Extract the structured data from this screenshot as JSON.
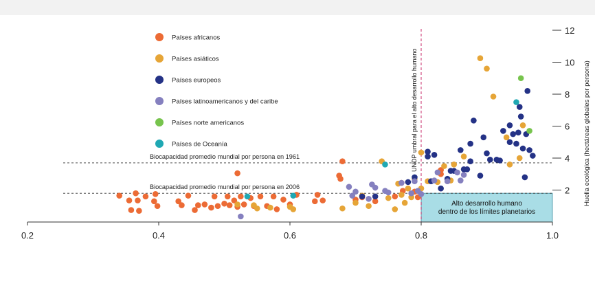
{
  "chart_data": {
    "type": "scatter",
    "title": "",
    "xlabel": "",
    "ylabel": "Huella ecológica (hectáreas globales por persona)",
    "xlim": [
      0.2,
      1.0
    ],
    "ylim": [
      0,
      12
    ],
    "x_ticks": [
      "0.2",
      "0.4",
      "0.6",
      "0.8",
      "1.0"
    ],
    "y_ticks": [
      "2",
      "4",
      "6",
      "8",
      "10",
      "12"
    ],
    "grid": false,
    "legend_position": "top-left",
    "colors": {
      "africa": "#ec6b35",
      "asia": "#e6a537",
      "europe": "#243286",
      "latam": "#8580bf",
      "namerica": "#77c44d",
      "oceania": "#1fa8b3",
      "box": "#a9dde6"
    },
    "reference_lines": [
      {
        "y": 3.7,
        "label": "Biocapacidad promedio mundial por persona en 1961"
      },
      {
        "y": 1.8,
        "label": "Biocapacidad promedio mundial por persona en 2006"
      }
    ],
    "threshold": {
      "x": 0.8,
      "label": "UNDP umbral para el alto desarrollo humano"
    },
    "region_box": {
      "x": [
        0.8,
        1.0
      ],
      "y": [
        0,
        1.8
      ],
      "label": [
        "Alto desarrollo humano",
        "dentro de los límites planetarios"
      ]
    },
    "series": [
      {
        "name": "Países africanos",
        "color_key": "africa",
        "points": [
          [
            0.34,
            1.65
          ],
          [
            0.355,
            1.35
          ],
          [
            0.358,
            0.75
          ],
          [
            0.365,
            1.8
          ],
          [
            0.368,
            1.35
          ],
          [
            0.37,
            0.7
          ],
          [
            0.38,
            1.6
          ],
          [
            0.395,
            1.75
          ],
          [
            0.398,
            1.0
          ],
          [
            0.393,
            1.3
          ],
          [
            0.43,
            1.3
          ],
          [
            0.435,
            1.05
          ],
          [
            0.445,
            1.65
          ],
          [
            0.455,
            0.75
          ],
          [
            0.46,
            1.05
          ],
          [
            0.47,
            1.1
          ],
          [
            0.48,
            0.9
          ],
          [
            0.485,
            1.6
          ],
          [
            0.49,
            1.0
          ],
          [
            0.5,
            1.15
          ],
          [
            0.505,
            1.6
          ],
          [
            0.508,
            1.05
          ],
          [
            0.515,
            1.35
          ],
          [
            0.52,
            0.95
          ],
          [
            0.52,
            3.05
          ],
          [
            0.525,
            1.6
          ],
          [
            0.53,
            1.1
          ],
          [
            0.54,
            1.5
          ],
          [
            0.545,
            1.0
          ],
          [
            0.555,
            1.6
          ],
          [
            0.565,
            1.0
          ],
          [
            0.575,
            1.6
          ],
          [
            0.58,
            0.8
          ],
          [
            0.59,
            1.4
          ],
          [
            0.6,
            1.1
          ],
          [
            0.61,
            1.7
          ],
          [
            0.638,
            1.3
          ],
          [
            0.642,
            1.7
          ],
          [
            0.65,
            1.35
          ],
          [
            0.675,
            2.9
          ],
          [
            0.677,
            2.7
          ],
          [
            0.68,
            3.8
          ],
          [
            0.7,
            1.4
          ],
          [
            0.71,
            1.55
          ],
          [
            0.73,
            1.3
          ],
          [
            0.76,
            1.6
          ],
          [
            0.77,
            2.45
          ],
          [
            0.772,
            1.95
          ],
          [
            0.79,
            1.9
          ],
          [
            0.795,
            1.55
          ],
          [
            0.83,
            3.25
          ],
          [
            0.83,
            3.0
          ]
        ]
      },
      {
        "name": "Países asiáticos",
        "color_key": "asia",
        "points": [
          [
            0.52,
            1.1
          ],
          [
            0.545,
            1.05
          ],
          [
            0.55,
            0.85
          ],
          [
            0.57,
            0.9
          ],
          [
            0.6,
            0.95
          ],
          [
            0.605,
            0.8
          ],
          [
            0.68,
            0.85
          ],
          [
            0.7,
            1.2
          ],
          [
            0.71,
            1.65
          ],
          [
            0.72,
            1.0
          ],
          [
            0.75,
            1.5
          ],
          [
            0.76,
            0.8
          ],
          [
            0.765,
            2.4
          ],
          [
            0.77,
            1.7
          ],
          [
            0.775,
            1.2
          ],
          [
            0.78,
            2.1
          ],
          [
            0.785,
            1.55
          ],
          [
            0.79,
            2.7
          ],
          [
            0.8,
            2.1
          ],
          [
            0.8,
            4.35
          ],
          [
            0.81,
            2.55
          ],
          [
            0.825,
            2.5
          ],
          [
            0.835,
            3.5
          ],
          [
            0.845,
            2.6
          ],
          [
            0.85,
            3.6
          ],
          [
            0.74,
            3.8
          ],
          [
            0.865,
            4.1
          ],
          [
            0.89,
            10.25
          ],
          [
            0.9,
            9.6
          ],
          [
            0.91,
            7.85
          ],
          [
            0.93,
            5.3
          ],
          [
            0.935,
            3.6
          ],
          [
            0.95,
            4.0
          ],
          [
            0.955,
            6.05
          ]
        ]
      },
      {
        "name": "Países europeos",
        "color_key": "europe",
        "points": [
          [
            0.71,
            1.6
          ],
          [
            0.73,
            1.6
          ],
          [
            0.78,
            2.5
          ],
          [
            0.79,
            2.8
          ],
          [
            0.81,
            4.4
          ],
          [
            0.81,
            4.1
          ],
          [
            0.815,
            2.55
          ],
          [
            0.82,
            4.2
          ],
          [
            0.83,
            2.1
          ],
          [
            0.84,
            2.7
          ],
          [
            0.845,
            3.2
          ],
          [
            0.85,
            3.2
          ],
          [
            0.86,
            4.5
          ],
          [
            0.865,
            3.3
          ],
          [
            0.87,
            3.3
          ],
          [
            0.875,
            4.9
          ],
          [
            0.875,
            3.8
          ],
          [
            0.88,
            6.35
          ],
          [
            0.89,
            2.9
          ],
          [
            0.895,
            5.3
          ],
          [
            0.9,
            4.3
          ],
          [
            0.905,
            3.9
          ],
          [
            0.915,
            3.9
          ],
          [
            0.92,
            3.85
          ],
          [
            0.925,
            5.7
          ],
          [
            0.935,
            5.0
          ],
          [
            0.935,
            6.05
          ],
          [
            0.94,
            5.5
          ],
          [
            0.945,
            4.9
          ],
          [
            0.948,
            5.6
          ],
          [
            0.95,
            7.2
          ],
          [
            0.952,
            6.6
          ],
          [
            0.955,
            4.6
          ],
          [
            0.958,
            2.8
          ],
          [
            0.962,
            8.2
          ],
          [
            0.965,
            4.5
          ],
          [
            0.97,
            4.15
          ],
          [
            0.96,
            5.5
          ]
        ]
      },
      {
        "name": "Países latinoamericanos y del caribe",
        "color_key": "latam",
        "points": [
          [
            0.525,
            0.35
          ],
          [
            0.69,
            2.2
          ],
          [
            0.695,
            1.65
          ],
          [
            0.7,
            1.9
          ],
          [
            0.72,
            1.45
          ],
          [
            0.725,
            2.35
          ],
          [
            0.73,
            2.15
          ],
          [
            0.745,
            1.95
          ],
          [
            0.75,
            1.85
          ],
          [
            0.77,
            2.45
          ],
          [
            0.785,
            1.8
          ],
          [
            0.79,
            2.55
          ],
          [
            0.795,
            1.95
          ],
          [
            0.8,
            1.75
          ],
          [
            0.82,
            2.6
          ],
          [
            0.825,
            3.1
          ],
          [
            0.84,
            2.55
          ],
          [
            0.855,
            3.1
          ],
          [
            0.86,
            2.6
          ],
          [
            0.865,
            2.95
          ]
        ]
      },
      {
        "name": "Países norte americanos",
        "color_key": "namerica",
        "points": [
          [
            0.952,
            9.0
          ],
          [
            0.965,
            5.7
          ]
        ]
      },
      {
        "name": "Países de Oceanía",
        "color_key": "oceania",
        "points": [
          [
            0.535,
            1.6
          ],
          [
            0.605,
            1.65
          ],
          [
            0.745,
            3.6
          ],
          [
            0.945,
            7.5
          ]
        ]
      }
    ]
  }
}
